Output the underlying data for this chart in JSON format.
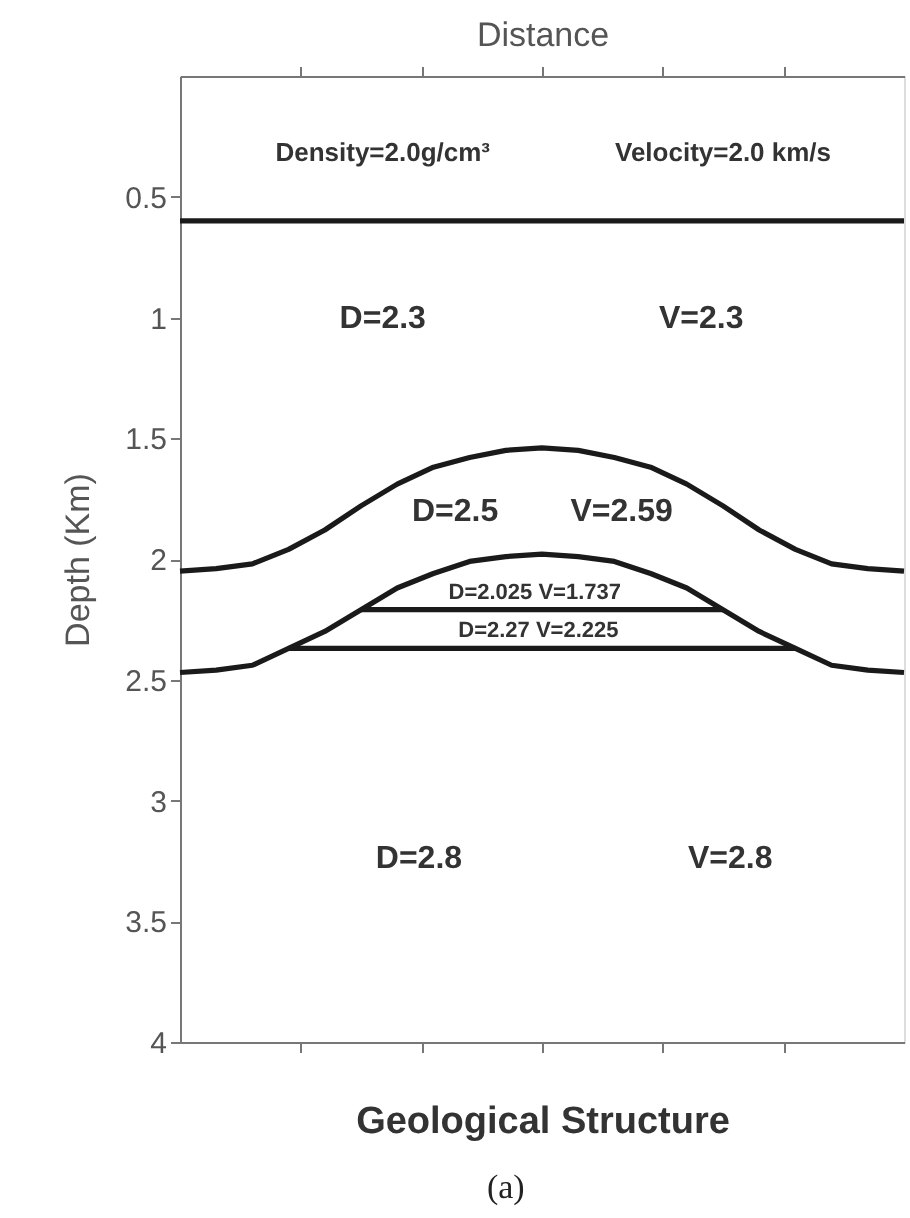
{
  "chart_data": {
    "type": "line",
    "xlabel": "Geological Structure",
    "x2label": "Distance",
    "ylabel": "Depth (Km)",
    "categories": [
      null,
      null,
      null,
      null,
      null,
      null,
      null,
      null,
      null,
      null,
      null,
      null,
      null,
      null,
      null,
      null,
      null,
      null,
      null,
      null,
      null
    ],
    "ylim": [
      4,
      0
    ],
    "yticks": [
      0.5,
      1,
      1.5,
      2,
      2.5,
      3,
      3.5,
      4
    ],
    "grid": false,
    "marker": "none",
    "line_style": "solid",
    "series": [
      {
        "color": "#1a1a1a",
        "values": [
          0.6,
          0.6,
          0.6,
          0.6,
          0.6,
          0.6,
          0.6,
          0.6,
          0.6,
          0.6,
          0.6,
          0.6,
          0.6,
          0.6,
          0.6,
          0.6,
          0.6,
          0.6,
          0.6,
          0.6,
          0.6
        ]
      },
      {
        "color": "#1a1a1a",
        "values": [
          2.05,
          2.04,
          2.02,
          1.96,
          1.88,
          1.78,
          1.69,
          1.62,
          1.58,
          1.55,
          1.54,
          1.55,
          1.58,
          1.62,
          1.69,
          1.78,
          1.88,
          1.96,
          2.02,
          2.04,
          2.05
        ]
      },
      {
        "color": "#1a1a1a",
        "values": [
          2.47,
          2.46,
          2.44,
          2.37,
          2.3,
          2.21,
          2.12,
          2.06,
          2.01,
          1.99,
          1.98,
          1.99,
          2.01,
          2.06,
          2.12,
          2.21,
          2.3,
          2.37,
          2.44,
          2.46,
          2.47
        ]
      },
      {
        "color": "#1a1a1a",
        "values": [
          null,
          null,
          null,
          null,
          null,
          2.21,
          2.21,
          2.21,
          2.21,
          2.21,
          2.21,
          2.21,
          2.21,
          2.21,
          2.21,
          2.21,
          null,
          null,
          null,
          null,
          null
        ]
      },
      {
        "color": "#1a1a1a",
        "values": [
          null,
          null,
          null,
          2.37,
          2.37,
          2.37,
          2.37,
          2.37,
          2.37,
          2.37,
          2.37,
          2.37,
          2.37,
          2.37,
          2.37,
          2.37,
          2.37,
          2.37,
          null,
          null,
          null
        ]
      }
    ],
    "annotations": [
      "Density=2.0g/cm³",
      "Velocity=2.0 km/s",
      "D=2.3",
      "V=2.3",
      "D=2.5",
      "V=2.59",
      "D=2.025  V=1.737",
      "D=2.27      V=2.225",
      "D=2.8",
      "V=2.8",
      "(a)"
    ]
  }
}
